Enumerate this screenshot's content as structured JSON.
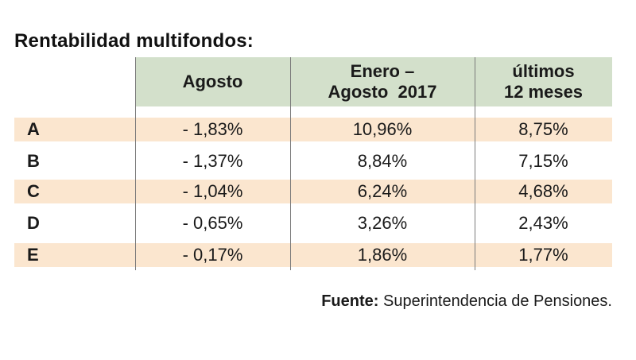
{
  "title": "Rentabilidad multifondos:",
  "columns": [
    {
      "lines": [
        "Agosto"
      ]
    },
    {
      "lines": [
        "Enero –",
        "Agosto  2017"
      ]
    },
    {
      "lines": [
        "últimos",
        "12 meses"
      ]
    }
  ],
  "rows": [
    {
      "fund": "A",
      "agosto": "- 1,83%",
      "enero_agosto_2017": "10,96%",
      "ultimos_12_meses": "8,75%"
    },
    {
      "fund": "B",
      "agosto": "- 1,37%",
      "enero_agosto_2017": "8,84%",
      "ultimos_12_meses": "7,15%"
    },
    {
      "fund": "C",
      "agosto": "- 1,04%",
      "enero_agosto_2017": "6,24%",
      "ultimos_12_meses": "4,68%"
    },
    {
      "fund": "D",
      "agosto": "- 0,65%",
      "enero_agosto_2017": "3,26%",
      "ultimos_12_meses": "2,43%"
    },
    {
      "fund": "E",
      "agosto": "- 0,17%",
      "enero_agosto_2017": "1,86%",
      "ultimos_12_meses": "1,77%"
    }
  ],
  "source": {
    "label": "Fuente:",
    "text": "Superintendencia de Pensiones."
  },
  "colors": {
    "header_background": "#d3e0cb",
    "shaded_row_background": "#fbe6cf",
    "divider": "#7a7a7a"
  }
}
